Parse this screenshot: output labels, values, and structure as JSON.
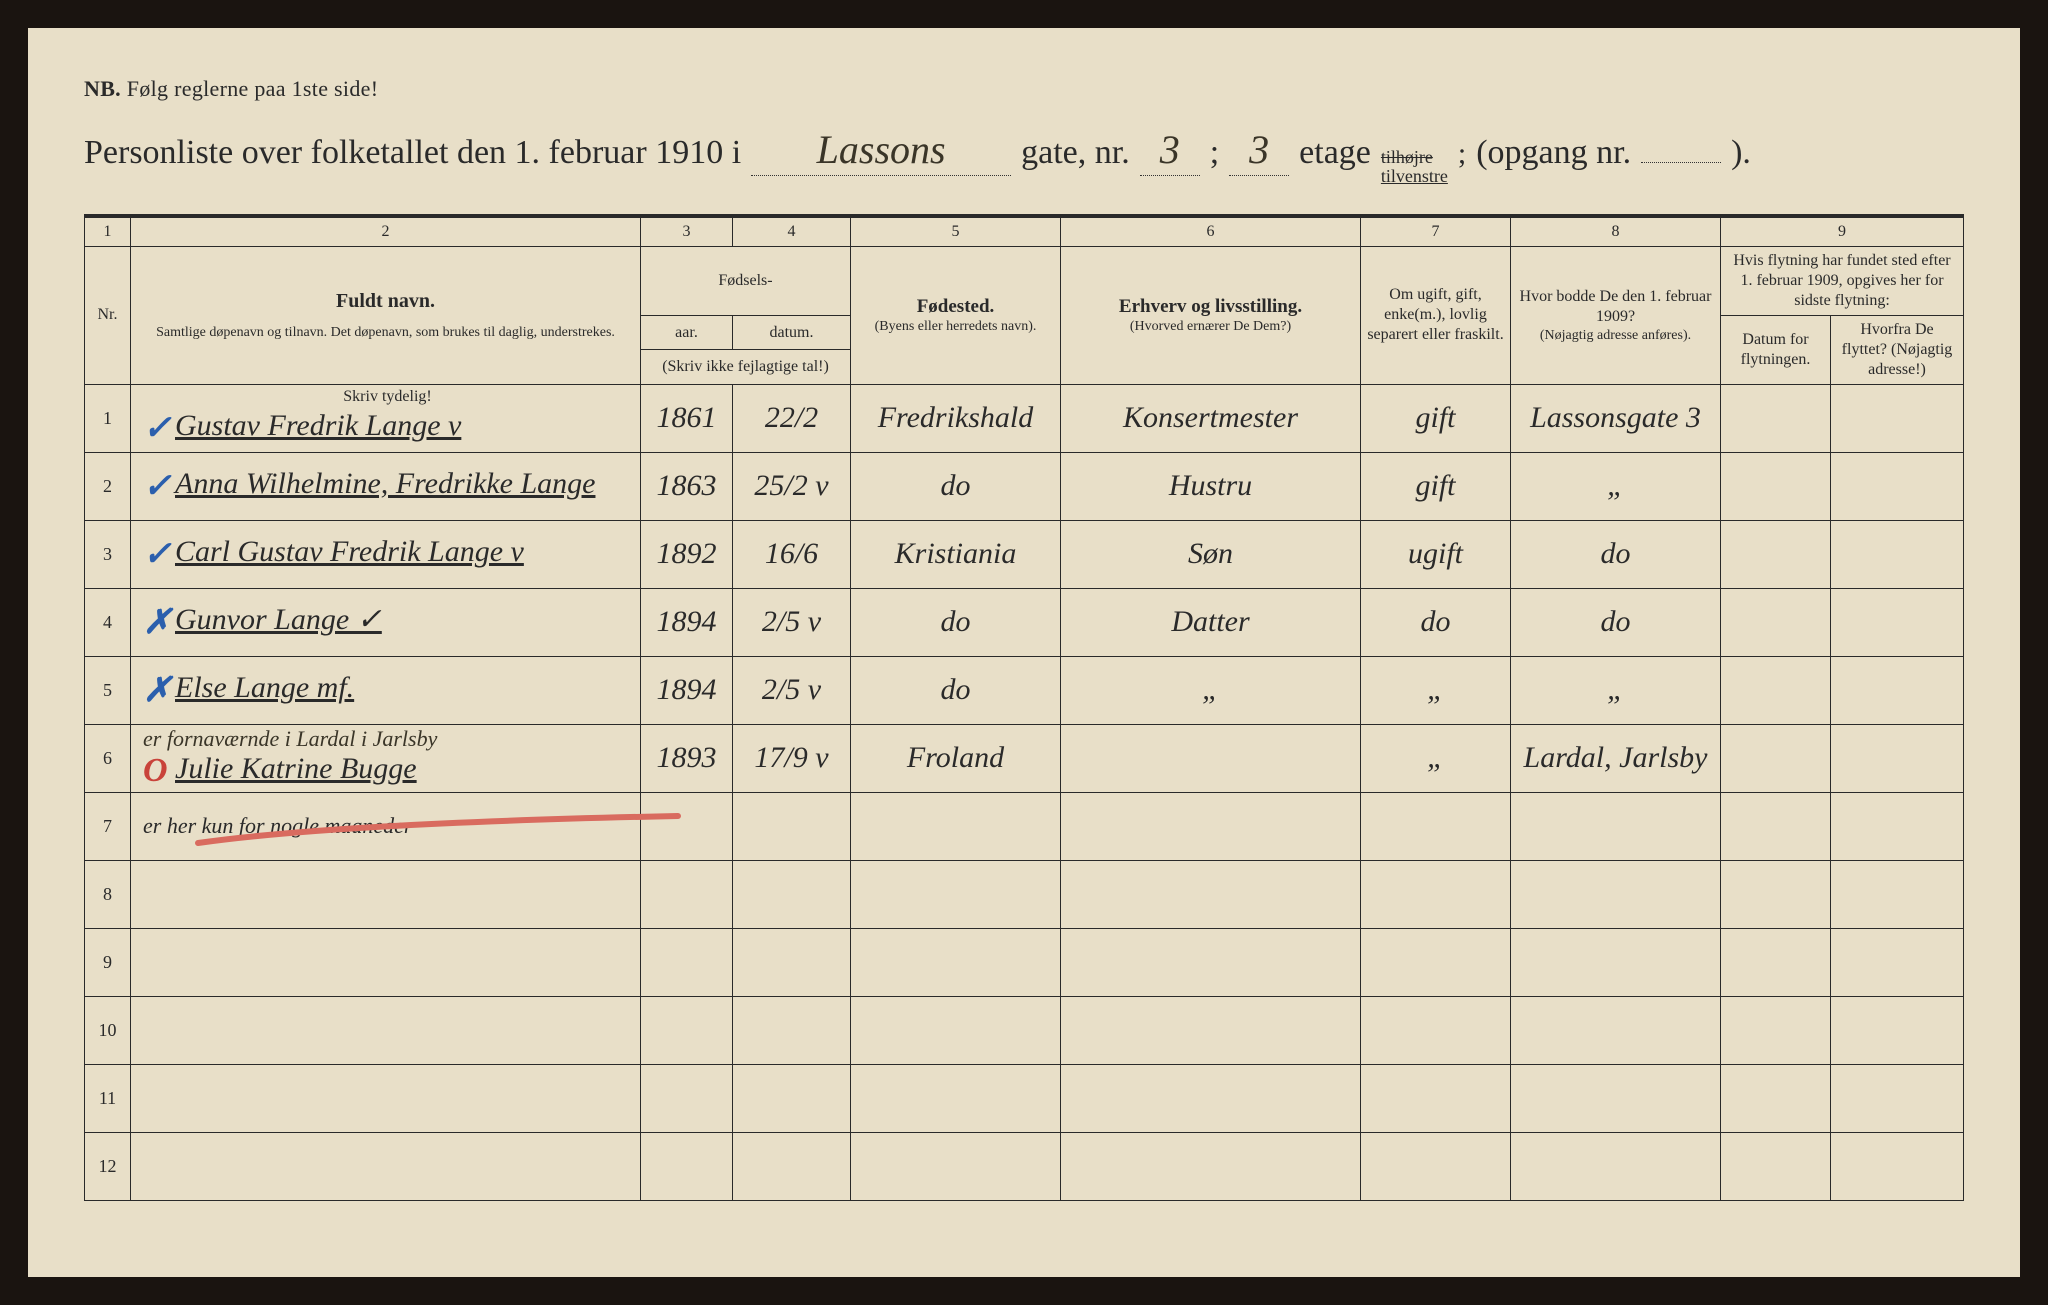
{
  "page": {
    "bg_color": "#e8dfc8",
    "outer_bg": "#1a1410",
    "text_color": "#2a2a2a",
    "handwriting_color": "#3a3528",
    "mark_blue": "#2b5fad",
    "mark_red": "#c9433a"
  },
  "nb": {
    "label": "NB.",
    "text": "Følg reglerne paa 1ste side!"
  },
  "title": {
    "prefix": "Personliste over folketallet den 1. februar 1910 i",
    "street": "Lassons",
    "gate": "gate, nr.",
    "gate_nr": "3",
    "sep": ";",
    "etage_nr": "3",
    "etage": "etage",
    "tilhojre": "tilhøjre",
    "tilvenstre": "tilvenstre",
    "opgang": "(opgang nr.",
    "opgang_end": ")."
  },
  "columns": {
    "c1": "1",
    "c2": "2",
    "c3": "3",
    "c4": "4",
    "c5": "5",
    "c6": "6",
    "c7": "7",
    "c8": "8",
    "c9": "9",
    "nr": "Nr.",
    "fuldt": "Fuldt navn.",
    "fuldt_sub": "Samtlige døpenavn og tilnavn. Det døpenavn, som brukes til daglig, understrekes.",
    "fodsels": "Fødsels-",
    "aar": "aar.",
    "datum": "datum.",
    "skriv_ikke": "(Skriv ikke fejlagtige tal!)",
    "fodested": "Fødested.",
    "fodested_sub": "(Byens eller herredets navn).",
    "erhverv": "Erhverv og livsstilling.",
    "erhverv_sub": "(Hvorved ernærer De Dem?)",
    "ugift": "Om ugift, gift, enke(m.), lovlig separert eller fraskilt.",
    "bodde": "Hvor bodde De den 1. februar 1909?",
    "bodde_sub": "(Nøjagtig adresse anføres).",
    "flytning": "Hvis flytning har fundet sted efter 1. februar 1909, opgives her for sidste flytning:",
    "datum_flyt": "Datum for flytningen.",
    "hvorfra": "Hvorfra De flyttet? (Nøjagtig adresse!)",
    "skriv_tydelig": "Skriv tydelig!"
  },
  "rows": [
    {
      "nr": "1",
      "mark": "✓",
      "mark_class": "ublue",
      "name": "Gustav Fredrik Lange  v",
      "year": "1861",
      "date": "22/2",
      "birthplace": "Fredrikshald",
      "occupation": "Konsertmester",
      "status": "gift",
      "addr1909": "Lassonsgate 3",
      "flyt_date": "",
      "flyt_from": ""
    },
    {
      "nr": "2",
      "mark": "✓",
      "mark_class": "ublue",
      "name": "Anna Wilhelmine, Fredrikke Lange",
      "year": "1863",
      "date": "25/2 v",
      "birthplace": "do",
      "occupation": "Hustru",
      "status": "gift",
      "addr1909": "„",
      "flyt_date": "",
      "flyt_from": ""
    },
    {
      "nr": "3",
      "mark": "✓",
      "mark_class": "ublue",
      "name": "Carl Gustav Fredrik Lange  v",
      "year": "1892",
      "date": "16/6",
      "birthplace": "Kristiania",
      "occupation": "Søn",
      "status": "ugift",
      "addr1909": "do",
      "flyt_date": "",
      "flyt_from": ""
    },
    {
      "nr": "4",
      "mark": "✗",
      "mark_class": "xblue",
      "name": "Gunvor Lange  ✓",
      "year": "1894",
      "date": "2/5 v",
      "birthplace": "do",
      "occupation": "Datter",
      "status": "do",
      "addr1909": "do",
      "flyt_date": "",
      "flyt_from": ""
    },
    {
      "nr": "5",
      "mark": "✗",
      "mark_class": "xblue",
      "name": "Else Lange  mf.",
      "year": "1894",
      "date": "2/5 v",
      "birthplace": "do",
      "occupation": "„",
      "status": "„",
      "addr1909": "„",
      "flyt_date": "",
      "flyt_from": ""
    },
    {
      "nr": "6",
      "mark": "O",
      "mark_class": "ored",
      "name": "Julie Katrine Bugge",
      "year": "1893",
      "date": "17/9 v",
      "birthplace": "Froland",
      "occupation": "",
      "status": "„",
      "addr1909": "Lardal, Jarlsby",
      "flyt_date": "",
      "flyt_from": ""
    }
  ],
  "notes": {
    "after5": "er fornaværnde i Lardal i Jarlsby",
    "after6": "er her kun for nogle maaneder"
  },
  "empty_rows": [
    "7",
    "8",
    "9",
    "10",
    "11",
    "12"
  ]
}
